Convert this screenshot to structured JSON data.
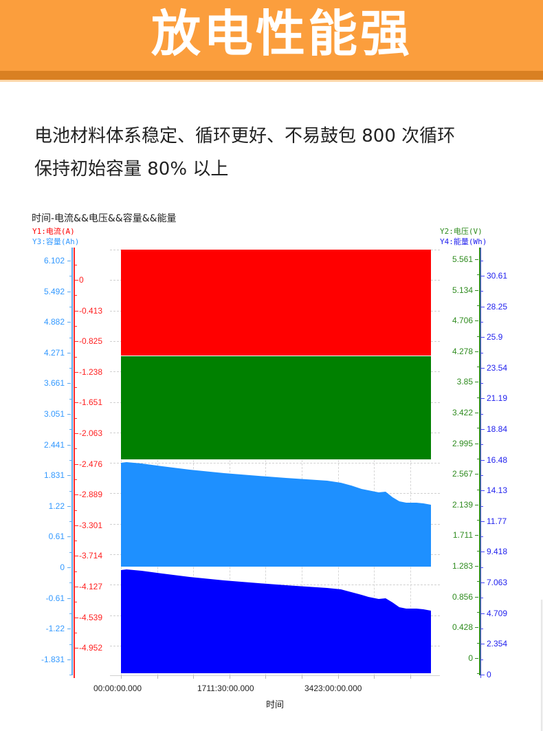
{
  "banner": {
    "title": "放电性能强",
    "background_color": "#FB9E3D",
    "stripe_color": "#D98022"
  },
  "description": {
    "line1": "电池材料体系稳定、循环更好、不易鼓包 800 次循环",
    "line2": "保持初始容量 80% 以上"
  },
  "chart_data": {
    "type": "area",
    "title": "时间-电流&&电压&&容量&&能量",
    "xlabel": "时间",
    "x_ticks": [
      "00:00:00.000",
      "1711:30:00.000",
      "3423:00:00.000"
    ],
    "axes": {
      "y1": {
        "label": "Y1:电流(A)",
        "color": "#FF0000",
        "ticks": [
          "0",
          "-0.413",
          "-0.825",
          "-1.238",
          "-1.651",
          "-2.063",
          "-2.476",
          "-2.889",
          "-3.301",
          "-3.714",
          "-4.127",
          "-4.539",
          "-4.952"
        ]
      },
      "y2": {
        "label": "Y2:电压(V)",
        "color": "#2E8B1E",
        "ticks": [
          "5.561",
          "5.134",
          "4.706",
          "4.278",
          "3.85",
          "3.422",
          "2.995",
          "2.567",
          "2.139",
          "1.711",
          "1.283",
          "0.856",
          "0.428",
          "0"
        ]
      },
      "y3": {
        "label": "Y3:容量(Ah)",
        "color": "#3399FF",
        "ticks": [
          "6.102",
          "5.492",
          "4.882",
          "4.271",
          "3.661",
          "3.051",
          "2.441",
          "1.831",
          "1.22",
          "0.61",
          "0",
          "-0.61",
          "-1.22",
          "-1.831"
        ]
      },
      "y4": {
        "label": "Y4:能量(Wh)",
        "color": "#2222EE",
        "ticks": [
          "30.61",
          "28.25",
          "25.9",
          "23.54",
          "21.19",
          "18.84",
          "16.48",
          "14.13",
          "11.77",
          "9.418",
          "7.063",
          "4.709",
          "2.354",
          "0"
        ]
      }
    },
    "series": [
      {
        "name": "电流",
        "axis": "y1",
        "color": "#FF0000",
        "shape": "flat band",
        "description": "constant block from top to ~-0.85A"
      },
      {
        "name": "电压",
        "axis": "y2",
        "color": "#008000",
        "shape": "flat band",
        "description": "constant block ~4.27V down to ~2.7V"
      },
      {
        "name": "容量",
        "axis": "y3",
        "color": "#1E90FF",
        "x_fraction": [
          0,
          0.06,
          0.2,
          0.4,
          0.6,
          0.68,
          0.78,
          0.84,
          0.9,
          0.94,
          1.0
        ],
        "values": [
          1.87,
          1.86,
          1.8,
          1.73,
          1.66,
          1.62,
          1.52,
          1.45,
          1.3,
          1.25,
          1.22
        ]
      },
      {
        "name": "能量",
        "axis": "y4",
        "color": "#0000FF",
        "x_fraction": [
          0,
          0.06,
          0.2,
          0.4,
          0.6,
          0.68,
          0.78,
          0.84,
          0.9,
          0.94,
          1.0
        ],
        "values": [
          6.95,
          6.9,
          6.6,
          6.2,
          5.85,
          5.7,
          5.3,
          5.0,
          4.45,
          4.4,
          4.25
        ]
      }
    ],
    "grid": true
  }
}
